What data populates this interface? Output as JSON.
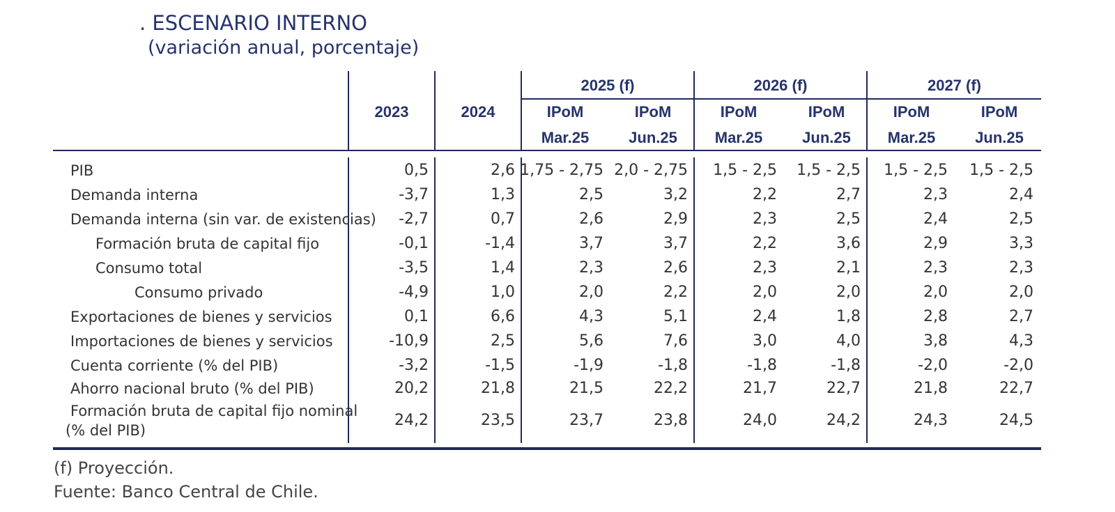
{
  "title": ". ESCENARIO INTERNO",
  "subtitle": "(variación anual, porcentaje)",
  "headers": {
    "y2023": "2023",
    "y2024": "2024",
    "y2025": "2025 (f)",
    "y2026": "2026 (f)",
    "y2027": "2027 (f)",
    "ipom": "IPoM",
    "mar": "Mar.25",
    "jun": "Jun.25"
  },
  "rows": [
    {
      "label": "PIB",
      "values": [
        "0,5",
        "2,6",
        "1,75 - 2,75",
        "2,0 - 2,75",
        "1,5 - 2,5",
        "1,5 - 2,5",
        "1,5 - 2,5",
        "1,5 - 2,5"
      ]
    },
    {
      "label": "Demanda interna",
      "values": [
        "-3,7",
        "1,3",
        "2,5",
        "3,2",
        "2,2",
        "2,7",
        "2,3",
        "2,4"
      ]
    },
    {
      "label": "Demanda interna (sin var. de existencias)",
      "values": [
        "-2,7",
        "0,7",
        "2,6",
        "2,9",
        "2,3",
        "2,5",
        "2,4",
        "2,5"
      ]
    },
    {
      "label": "Formación bruta de capital fijo",
      "values": [
        "-0,1",
        "-1,4",
        "3,7",
        "3,7",
        "2,2",
        "3,6",
        "2,9",
        "3,3"
      ]
    },
    {
      "label": "Consumo total",
      "values": [
        "-3,5",
        "1,4",
        "2,3",
        "2,6",
        "2,3",
        "2,1",
        "2,3",
        "2,3"
      ]
    },
    {
      "label": "Consumo privado",
      "values": [
        "-4,9",
        "1,0",
        "2,0",
        "2,2",
        "2,0",
        "2,0",
        "2,0",
        "2,0"
      ]
    },
    {
      "label": "Exportaciones de bienes y servicios",
      "values": [
        "0,1",
        "6,6",
        "4,3",
        "5,1",
        "2,4",
        "1,8",
        "2,8",
        "2,7"
      ]
    },
    {
      "label": "Importaciones de bienes y servicios",
      "values": [
        "-10,9",
        "2,5",
        "5,6",
        "7,6",
        "3,0",
        "4,0",
        "3,8",
        "4,3"
      ]
    },
    {
      "label": "Cuenta corriente (% del PIB)",
      "values": [
        "-3,2",
        "-1,5",
        "-1,9",
        "-1,8",
        "-1,8",
        "-1,8",
        "-2,0",
        "-2,0"
      ]
    },
    {
      "label": "Ahorro nacional bruto (% del PIB)",
      "values": [
        "20,2",
        "21,8",
        "21,5",
        "22,2",
        "21,7",
        "22,7",
        "21,8",
        "22,7"
      ]
    },
    {
      "label": "Formación bruta de capital fijo nominal",
      "label2": "(% del PIB)",
      "values": [
        "24,2",
        "23,5",
        "23,7",
        "23,8",
        "24,0",
        "24,2",
        "24,3",
        "24,5"
      ]
    }
  ],
  "notes": {
    "projection": "(f) Proyección.",
    "source": "Fuente: Banco Central de Chile."
  }
}
